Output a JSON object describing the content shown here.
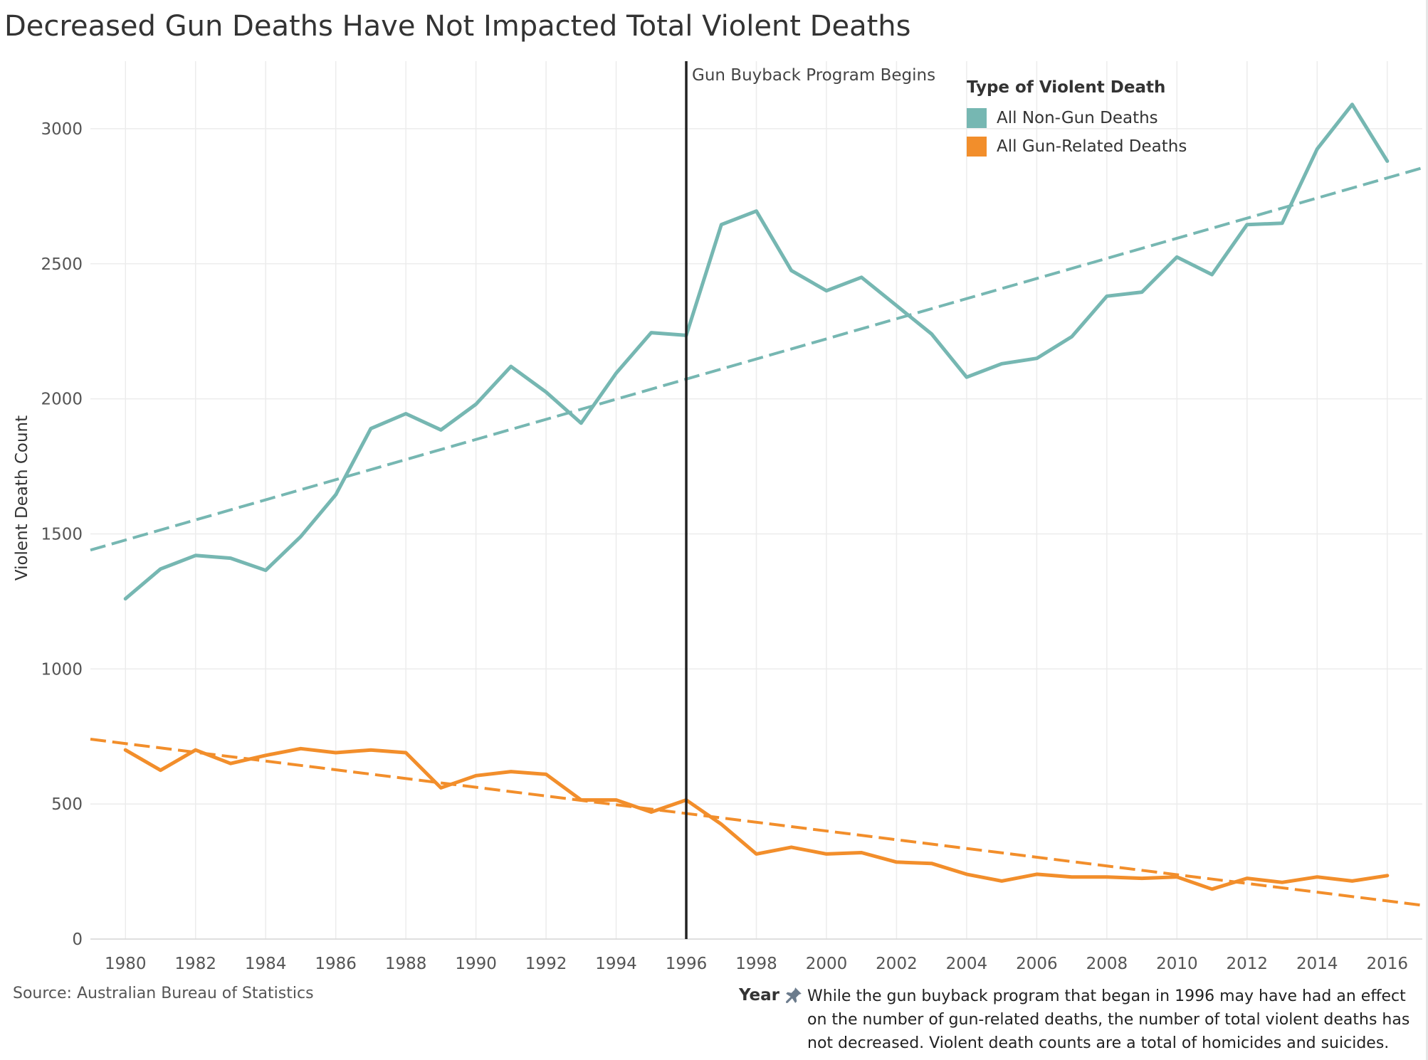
{
  "title": "Decreased Gun Deaths Have Not Impacted Total Violent Deaths",
  "chart_data": {
    "type": "line",
    "x": [
      1980,
      1981,
      1982,
      1983,
      1984,
      1985,
      1986,
      1987,
      1988,
      1989,
      1990,
      1991,
      1992,
      1993,
      1994,
      1995,
      1996,
      1997,
      1998,
      1999,
      2000,
      2001,
      2002,
      2003,
      2004,
      2005,
      2006,
      2007,
      2008,
      2009,
      2010,
      2011,
      2012,
      2013,
      2014,
      2015,
      2016
    ],
    "xticks": [
      1980,
      1982,
      1984,
      1986,
      1988,
      1990,
      1992,
      1994,
      1996,
      1998,
      2000,
      2002,
      2004,
      2006,
      2008,
      2010,
      2012,
      2014,
      2016
    ],
    "xlim": [
      1979,
      2017
    ],
    "ylim": [
      0,
      3250
    ],
    "yticks": [
      0,
      500,
      1000,
      1500,
      2000,
      2500,
      3000
    ],
    "xlabel": "Year",
    "ylabel": "Violent Death Count",
    "grid": true,
    "legend_title": "Type of Violent Death",
    "legend_position": "top-right",
    "series": [
      {
        "name": "All Non-Gun Deaths",
        "color": "#76b7b2",
        "values": [
          1260,
          1370,
          1420,
          1410,
          1365,
          1490,
          1645,
          1890,
          1945,
          1885,
          1980,
          2120,
          2025,
          1910,
          2095,
          2245,
          2235,
          2645,
          2695,
          2475,
          2400,
          2450,
          2345,
          2240,
          2080,
          2130,
          2150,
          2230,
          2380,
          2395,
          2525,
          2460,
          2645,
          2650,
          2925,
          3090,
          2880
        ],
        "trend": [
          1440,
          2855
        ]
      },
      {
        "name": "All Gun-Related Deaths",
        "color": "#f28e2b",
        "values": [
          700,
          625,
          700,
          650,
          680,
          705,
          690,
          700,
          690,
          560,
          605,
          620,
          610,
          515,
          515,
          470,
          515,
          425,
          315,
          340,
          315,
          320,
          285,
          280,
          240,
          215,
          240,
          230,
          230,
          225,
          230,
          185,
          225,
          210,
          230,
          215,
          235
        ],
        "trend": [
          740,
          125
        ]
      }
    ],
    "annotations": [
      {
        "x": 1996,
        "label": "Gun Buyback Program Begins"
      }
    ]
  },
  "source": "Source: Australian Bureau of Statistics",
  "note": "While the gun buyback program that began in 1996 may have had an effect on the number of gun-related deaths, the number of total violent deaths has not decreased. Violent death counts are a total of homicides and suicides.",
  "icons": {
    "pin": "pin-icon"
  }
}
